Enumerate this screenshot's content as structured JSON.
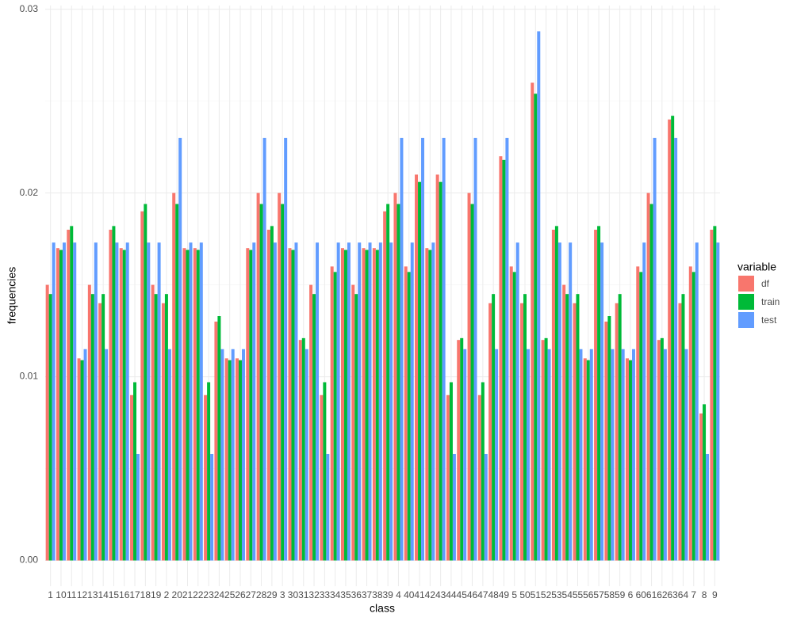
{
  "chart_data": {
    "type": "bar",
    "x_label": "class",
    "y_label": "frequencies",
    "legend_title": "variable",
    "grid": true,
    "categories": [
      "1",
      "10",
      "11",
      "12",
      "13",
      "14",
      "15",
      "16",
      "17",
      "18",
      "19",
      "2",
      "20",
      "21",
      "22",
      "23",
      "24",
      "25",
      "26",
      "27",
      "28",
      "29",
      "3",
      "30",
      "31",
      "32",
      "33",
      "34",
      "35",
      "36",
      "37",
      "38",
      "39",
      "4",
      "40",
      "41",
      "42",
      "43",
      "44",
      "45",
      "46",
      "47",
      "48",
      "49",
      "5",
      "50",
      "51",
      "52",
      "53",
      "54",
      "55",
      "56",
      "57",
      "58",
      "59",
      "6",
      "60",
      "61",
      "62",
      "63",
      "64",
      "7",
      "8",
      "9"
    ],
    "series": [
      {
        "name": "df",
        "color": "#F8766D",
        "values": [
          0.015,
          0.017,
          0.018,
          0.011,
          0.015,
          0.014,
          0.018,
          0.017,
          0.009,
          0.019,
          0.015,
          0.014,
          0.02,
          0.017,
          0.017,
          0.009,
          0.013,
          0.011,
          0.011,
          0.017,
          0.02,
          0.018,
          0.02,
          0.017,
          0.012,
          0.015,
          0.009,
          0.016,
          0.017,
          0.015,
          0.017,
          0.017,
          0.019,
          0.02,
          0.016,
          0.021,
          0.017,
          0.021,
          0.009,
          0.012,
          0.02,
          0.009,
          0.014,
          0.022,
          0.016,
          0.014,
          0.026,
          0.012,
          0.018,
          0.015,
          0.014,
          0.011,
          0.018,
          0.013,
          0.014,
          0.011,
          0.016,
          0.02,
          0.012,
          0.024,
          0.014,
          0.016,
          0.008,
          0.018
        ]
      },
      {
        "name": "train",
        "color": "#00BA38",
        "values": [
          0.0145,
          0.0169,
          0.0182,
          0.0109,
          0.0145,
          0.0145,
          0.0182,
          0.0169,
          0.0097,
          0.0194,
          0.0145,
          0.0145,
          0.0194,
          0.0169,
          0.0169,
          0.0097,
          0.0133,
          0.0109,
          0.0109,
          0.0169,
          0.0194,
          0.0182,
          0.0194,
          0.0169,
          0.0121,
          0.0145,
          0.0097,
          0.0157,
          0.0169,
          0.0145,
          0.0169,
          0.0169,
          0.0194,
          0.0194,
          0.0157,
          0.0206,
          0.0169,
          0.0206,
          0.0097,
          0.0121,
          0.0194,
          0.0097,
          0.0145,
          0.0218,
          0.0157,
          0.0145,
          0.0254,
          0.0121,
          0.0182,
          0.0145,
          0.0145,
          0.0109,
          0.0182,
          0.0133,
          0.0145,
          0.0109,
          0.0157,
          0.0194,
          0.0121,
          0.0242,
          0.0145,
          0.0157,
          0.0085,
          0.0182
        ]
      },
      {
        "name": "test",
        "color": "#619CFF",
        "values": [
          0.0173,
          0.0173,
          0.0173,
          0.0115,
          0.0173,
          0.0115,
          0.0173,
          0.0173,
          0.0058,
          0.0173,
          0.0173,
          0.0115,
          0.023,
          0.0173,
          0.0173,
          0.0058,
          0.0115,
          0.0115,
          0.0115,
          0.0173,
          0.023,
          0.0173,
          0.023,
          0.0173,
          0.0115,
          0.0173,
          0.0058,
          0.0173,
          0.0173,
          0.0173,
          0.0173,
          0.0173,
          0.0173,
          0.023,
          0.0173,
          0.023,
          0.0173,
          0.023,
          0.0058,
          0.0115,
          0.023,
          0.0058,
          0.0115,
          0.023,
          0.0173,
          0.0115,
          0.0288,
          0.0115,
          0.0173,
          0.0173,
          0.0115,
          0.0115,
          0.0173,
          0.0115,
          0.0115,
          0.0115,
          0.0173,
          0.023,
          0.0115,
          0.023,
          0.0115,
          0.0173,
          0.0058,
          0.0173
        ]
      }
    ],
    "ylim": [
      -0.0014,
      0.0302
    ],
    "yticks": [
      {
        "value": 0,
        "label": "0.00"
      },
      0.01,
      0.02,
      0.03
    ]
  }
}
